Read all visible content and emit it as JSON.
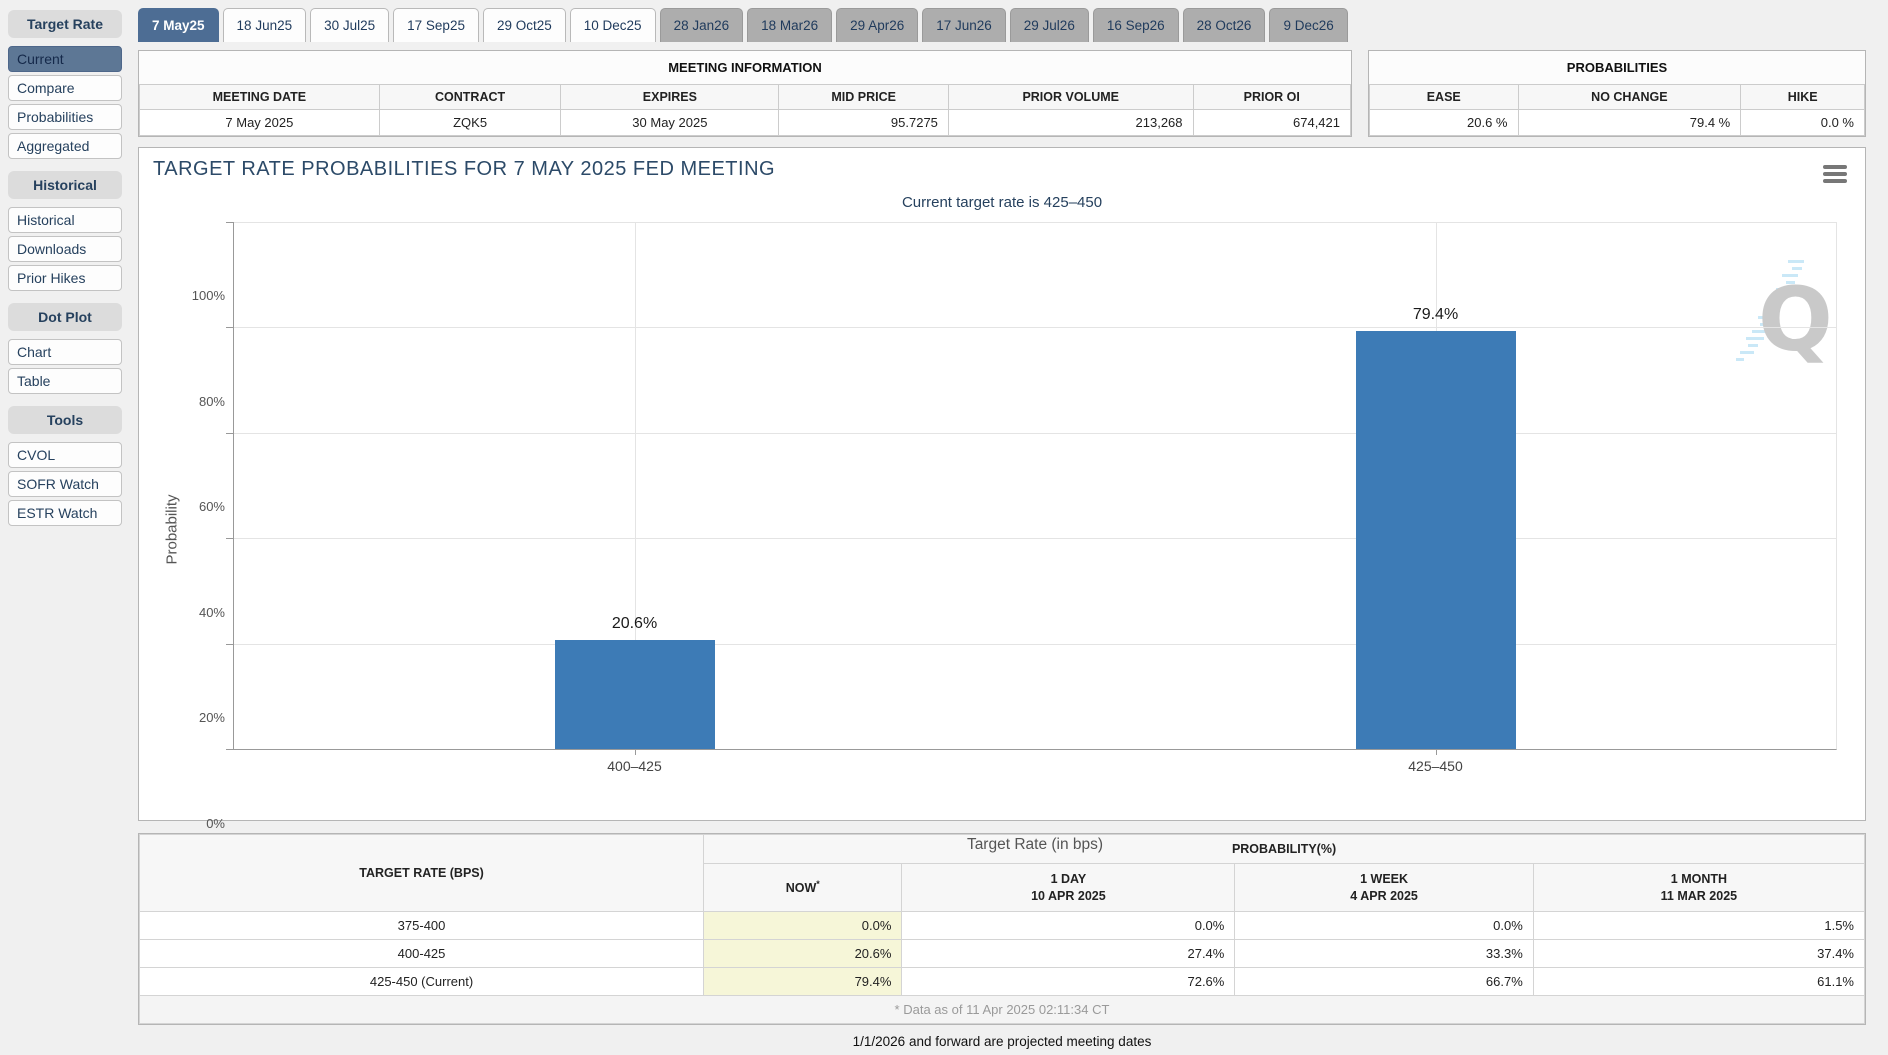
{
  "sidebar": {
    "sections": [
      {
        "header": "Target Rate",
        "items": [
          {
            "label": "Current",
            "selected": true
          },
          {
            "label": "Compare",
            "selected": false
          },
          {
            "label": "Probabilities",
            "selected": false
          },
          {
            "label": "Aggregated",
            "selected": false
          }
        ]
      },
      {
        "header": "Historical",
        "items": [
          {
            "label": "Historical",
            "selected": false
          },
          {
            "label": "Downloads",
            "selected": false
          },
          {
            "label": "Prior Hikes",
            "selected": false
          }
        ]
      },
      {
        "header": "Dot Plot",
        "items": [
          {
            "label": "Chart",
            "selected": false
          },
          {
            "label": "Table",
            "selected": false
          }
        ]
      },
      {
        "header": "Tools",
        "items": [
          {
            "label": "CVOL",
            "selected": false
          },
          {
            "label": "SOFR Watch",
            "selected": false
          },
          {
            "label": "ESTR Watch",
            "selected": false
          }
        ]
      }
    ]
  },
  "tabs": [
    {
      "label": "7 May25",
      "state": "selected"
    },
    {
      "label": "18 Jun25",
      "state": "normal"
    },
    {
      "label": "30 Jul25",
      "state": "normal"
    },
    {
      "label": "17 Sep25",
      "state": "normal"
    },
    {
      "label": "29 Oct25",
      "state": "normal"
    },
    {
      "label": "10 Dec25",
      "state": "normal"
    },
    {
      "label": "28 Jan26",
      "state": "projected"
    },
    {
      "label": "18 Mar26",
      "state": "projected"
    },
    {
      "label": "29 Apr26",
      "state": "projected"
    },
    {
      "label": "17 Jun26",
      "state": "projected"
    },
    {
      "label": "29 Jul26",
      "state": "projected"
    },
    {
      "label": "16 Sep26",
      "state": "projected"
    },
    {
      "label": "28 Oct26",
      "state": "projected"
    },
    {
      "label": "9 Dec26",
      "state": "projected"
    }
  ],
  "meeting_information": {
    "title": "MEETING INFORMATION",
    "columns": [
      "MEETING DATE",
      "CONTRACT",
      "EXPIRES",
      "MID PRICE",
      "PRIOR VOLUME",
      "PRIOR OI"
    ],
    "values": [
      "7 May 2025",
      "ZQK5",
      "30 May 2025",
      "95.7275",
      "213,268",
      "674,421"
    ]
  },
  "probabilities_panel": {
    "title": "PROBABILITIES",
    "columns": [
      "EASE",
      "NO CHANGE",
      "HIKE"
    ],
    "values": [
      "20.6 %",
      "79.4 %",
      "0.0 %"
    ]
  },
  "chart_data": {
    "type": "bar",
    "title": "TARGET RATE PROBABILITIES FOR 7 MAY 2025 FED MEETING",
    "subtitle": "Current target rate is 425–450",
    "categories": [
      "400–425",
      "425–450"
    ],
    "values": [
      20.6,
      79.4
    ],
    "bar_labels": [
      "20.6%",
      "79.4%"
    ],
    "xlabel": "Target Rate (in bps)",
    "ylabel": "Probability",
    "ylim": [
      0,
      100
    ],
    "yticks": [
      0,
      20,
      40,
      60,
      80,
      100
    ],
    "ytick_labels": [
      "0%",
      "20%",
      "40%",
      "60%",
      "80%",
      "100%"
    ],
    "grid": true,
    "legend": "none",
    "bar_color": "#3d7bb6"
  },
  "bottom_table": {
    "rate_header": "TARGET RATE (BPS)",
    "prob_header": "PROBABILITY(%)",
    "now_header": "NOW",
    "now_asterisk": "*",
    "period_headers": [
      {
        "line1": "1 DAY",
        "line2": "10 APR 2025"
      },
      {
        "line1": "1 WEEK",
        "line2": "4 APR 2025"
      },
      {
        "line1": "1 MONTH",
        "line2": "11 MAR 2025"
      }
    ],
    "rows": [
      {
        "rate": "375-400",
        "now": "0.0%",
        "day": "0.0%",
        "week": "0.0%",
        "month": "1.5%"
      },
      {
        "rate": "400-425",
        "now": "20.6%",
        "day": "27.4%",
        "week": "33.3%",
        "month": "37.4%"
      },
      {
        "rate": "425-450 (Current)",
        "now": "79.4%",
        "day": "72.6%",
        "week": "66.7%",
        "month": "61.1%"
      }
    ],
    "footnote": "* Data as of 11 Apr 2025 02:11:34 CT"
  },
  "footer_note": "1/1/2026 and forward are projected meeting dates",
  "colors": {
    "bar": "#3d7bb6",
    "selected_tab": "#4d6d94",
    "projected_tab": "#adadad",
    "now_highlight": "#f6f6d8",
    "navy_text": "#26415e"
  }
}
